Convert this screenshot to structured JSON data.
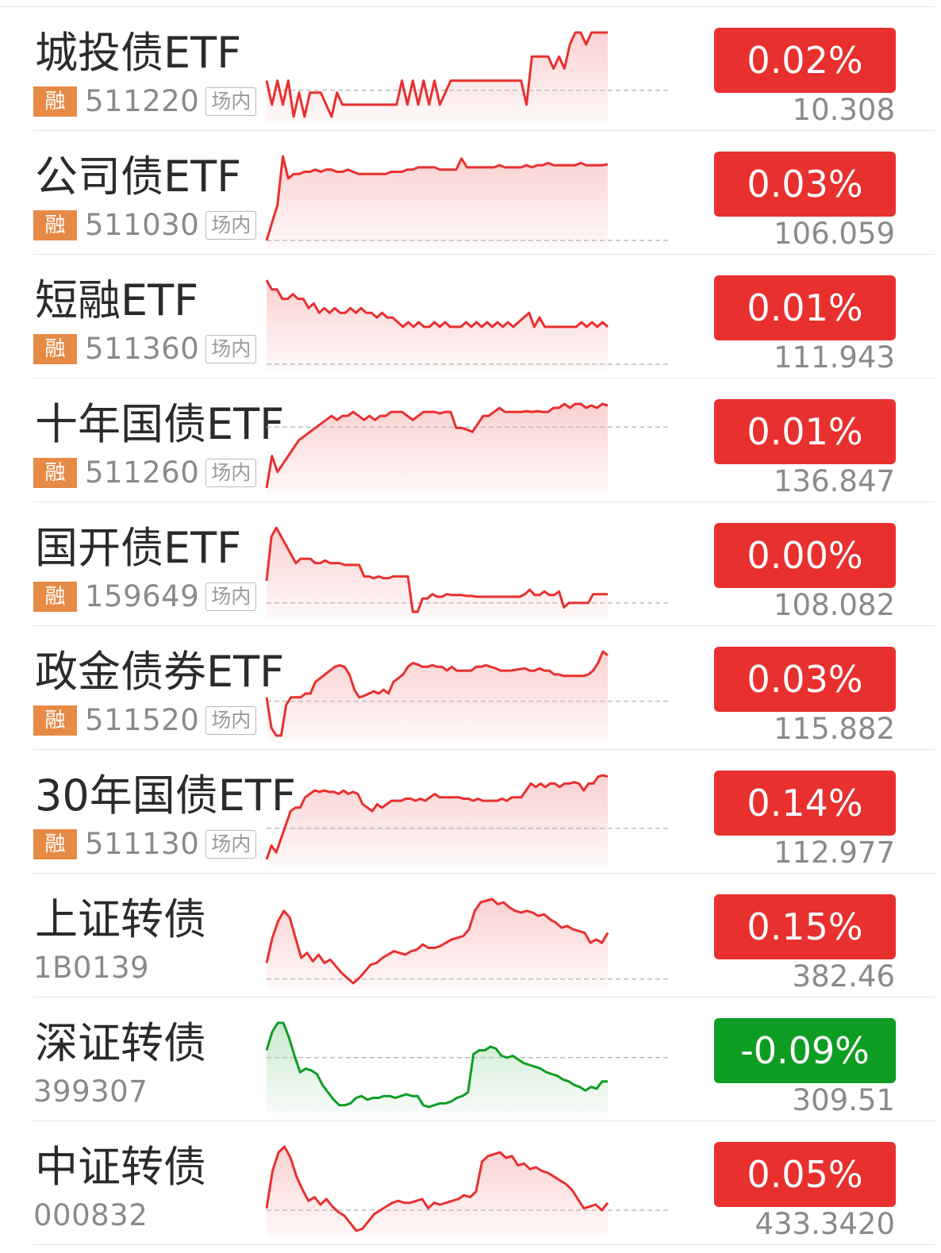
{
  "colors": {
    "up": "#e8302f",
    "down": "#0e9d23",
    "rong_bg": "#e68a45"
  },
  "rows": [
    {
      "name": "城投债ETF",
      "rong": "融",
      "code": "511220",
      "venue": "场内",
      "change": "0.02%",
      "price": "10.308",
      "trend": "up",
      "spark": [
        3,
        1,
        3,
        1,
        3,
        0,
        2,
        0,
        2,
        2,
        2,
        1,
        0,
        2,
        1,
        1,
        1,
        1,
        1,
        1,
        1,
        1,
        1,
        1,
        1,
        3,
        1,
        3,
        1,
        3,
        1,
        3,
        1,
        2,
        3,
        3,
        3,
        3,
        3,
        3,
        3,
        3,
        3,
        3,
        3,
        3,
        3,
        3,
        1,
        5,
        5,
        5,
        5,
        4,
        5,
        4,
        6,
        7,
        7,
        6,
        7,
        7,
        7,
        7
      ],
      "base": 2.2
    },
    {
      "name": "公司债ETF",
      "rong": "融",
      "code": "511030",
      "venue": "场内",
      "change": "0.03%",
      "price": "106.059",
      "trend": "up",
      "spark": [
        0,
        4,
        8,
        19,
        14,
        15,
        15,
        15.5,
        15.5,
        16,
        15.5,
        16,
        16,
        15.5,
        15.5,
        16,
        15.5,
        15,
        15,
        15,
        15,
        15,
        15,
        15.5,
        15.5,
        15.5,
        16,
        16,
        16.5,
        16.5,
        16.5,
        16.5,
        16,
        16,
        16,
        16,
        18.5,
        16.5,
        16.5,
        16.5,
        16.5,
        16.5,
        16.5,
        17,
        16.5,
        16.5,
        16.5,
        16.5,
        17,
        16.5,
        17,
        17,
        17.5,
        17,
        17,
        17,
        17,
        17,
        17.5,
        17,
        17,
        17,
        17,
        17.2
      ],
      "base": 0
    },
    {
      "name": "短融ETF",
      "rong": "融",
      "code": "511360",
      "venue": "场内",
      "change": "0.01%",
      "price": "111.943",
      "trend": "up",
      "spark": [
        9,
        8,
        8,
        7,
        7,
        7.5,
        7,
        7,
        6,
        6.5,
        5.5,
        6,
        5.5,
        6,
        5.5,
        5.5,
        6,
        5.5,
        6,
        5.5,
        5.5,
        5,
        5.5,
        5,
        5,
        4.5,
        4,
        4.5,
        4,
        4.5,
        4,
        4,
        4.5,
        4,
        4.5,
        4,
        4,
        4,
        4.5,
        4,
        4.5,
        4,
        4.5,
        4,
        4.5,
        4,
        4.5,
        4,
        4.5,
        5,
        5.5,
        4,
        5,
        4,
        4,
        4,
        4,
        4,
        4,
        4,
        4.5,
        4,
        4.5,
        4,
        4.5,
        4
      ],
      "base": 0
    },
    {
      "name": "十年国债ETF",
      "rong": "融",
      "code": "511260",
      "venue": "场内",
      "change": "0.01%",
      "price": "136.847",
      "trend": "up",
      "spark": [
        0,
        4,
        2,
        3,
        4,
        5,
        6,
        6.5,
        7,
        7.5,
        8,
        8.5,
        9,
        8.5,
        9,
        9,
        9.5,
        9,
        8.5,
        9,
        8.5,
        9,
        9,
        9.5,
        9.5,
        9.5,
        9,
        8.5,
        9,
        9.5,
        9.5,
        9.5,
        9.3,
        9.5,
        9.5,
        7.5,
        7.5,
        7.3,
        7,
        8,
        9,
        9,
        9.5,
        10,
        9.5,
        9.5,
        9.5,
        9.5,
        9.6,
        9.5,
        9.6,
        9.5,
        9.5,
        10,
        10,
        10.5,
        10,
        10.5,
        10.5,
        10,
        10.3,
        10,
        10.5,
        10.3
      ],
      "base": 7.6
    },
    {
      "name": "国开债ETF",
      "rong": "融",
      "code": "159649",
      "venue": "场内",
      "change": "0.00%",
      "price": "108.082",
      "trend": "up",
      "spark": [
        4,
        9,
        10,
        9,
        8,
        7,
        6,
        6.5,
        6.5,
        6.5,
        6,
        6,
        6.3,
        6,
        6,
        6,
        5.8,
        5.8,
        5.8,
        5.8,
        4.5,
        4.5,
        4.3,
        4.5,
        4.3,
        4.3,
        4.5,
        4.5,
        4.5,
        4.5,
        0.5,
        0.5,
        2,
        2,
        2.5,
        2.2,
        2.2,
        2.5,
        2.4,
        2.4,
        2.4,
        2.3,
        2.3,
        2.2,
        2.2,
        2.2,
        2.2,
        2.2,
        2.2,
        2.2,
        2.2,
        2.2,
        2.2,
        2.5,
        3,
        2.4,
        2.4,
        2.8,
        2.4,
        2.4,
        2.8,
        1,
        1.5,
        1.5,
        1.5,
        1.5,
        1.5,
        2.5,
        2.5,
        2.5,
        2.5
      ],
      "base": 1.5
    },
    {
      "name": "政金债券ETF",
      "rong": "融",
      "code": "511520",
      "venue": "场内",
      "change": "0.03%",
      "price": "115.882",
      "trend": "up",
      "spark": [
        5,
        1,
        0,
        0,
        4,
        5,
        5,
        5,
        5.5,
        5.5,
        7,
        7.5,
        8,
        8.5,
        9,
        9.2,
        9,
        8,
        6,
        5,
        5.2,
        5.5,
        5.8,
        5.5,
        6,
        5.5,
        7,
        7.5,
        8,
        9,
        9.5,
        9.3,
        9,
        9,
        9.2,
        9,
        9,
        8.5,
        9,
        8.5,
        8.5,
        8.5,
        8.5,
        9,
        9,
        9.2,
        9,
        8.8,
        8.5,
        8.5,
        8.5,
        8.6,
        8.7,
        8.8,
        8.5,
        8.5,
        8.8,
        8.5,
        8.5,
        8,
        8,
        7.8,
        7.8,
        7.8,
        7.8,
        7.8,
        8,
        8.5,
        9.5,
        11,
        10.5
      ],
      "base": 4.5
    },
    {
      "name": "30年国债ETF",
      "rong": "融",
      "code": "511130",
      "venue": "场内",
      "change": "0.14%",
      "price": "112.977",
      "trend": "up",
      "spark": [
        0,
        2,
        1,
        3,
        5,
        7,
        7.5,
        7.5,
        9,
        9.5,
        10,
        9.8,
        10,
        9.8,
        9.8,
        9.5,
        10,
        9.5,
        9.8,
        9.5,
        8,
        7.5,
        7,
        8,
        7.5,
        8,
        8.5,
        8.5,
        8.5,
        8.8,
        8.8,
        8.5,
        8.8,
        8.5,
        9,
        9.5,
        9,
        9,
        9,
        9,
        9,
        8.8,
        8.8,
        8.5,
        8.8,
        8.5,
        8.5,
        8.5,
        8.5,
        8.8,
        8.5,
        9,
        9,
        9,
        10,
        11,
        10.5,
        11,
        10.5,
        11,
        11,
        10.5,
        11,
        11,
        11.2,
        11,
        10,
        11,
        11,
        12,
        12.2,
        12
      ],
      "base": 4.5
    },
    {
      "name": "上证转债",
      "rong": "",
      "code": "1B0139",
      "venue": "",
      "change": "0.15%",
      "price": "382.46",
      "trend": "up",
      "spark": [
        1.5,
        3,
        4,
        4.6,
        4.2,
        3,
        1.8,
        2.1,
        1.6,
        2,
        1.5,
        1.7,
        1.3,
        0.9,
        0.6,
        0.3,
        0.6,
        1,
        1.4,
        1.5,
        1.8,
        2,
        2.2,
        2.1,
        2,
        2.2,
        2.3,
        2.6,
        2.4,
        2.4,
        2.5,
        2.7,
        2.9,
        3,
        3.1,
        3.5,
        4.6,
        5.1,
        5.2,
        5.3,
        5,
        5.1,
        4.8,
        4.6,
        4.5,
        4.6,
        4.5,
        4.3,
        4.4,
        4.1,
        3.9,
        3.6,
        3.7,
        3.5,
        3.4,
        3.3,
        2.7,
        2.9,
        2.7,
        3.3
      ],
      "base": 0.55
    },
    {
      "name": "深证转债",
      "rong": "",
      "code": "399307",
      "venue": "",
      "change": "-0.09%",
      "price": "309.51",
      "trend": "down",
      "spark": [
        3.5,
        4.5,
        5,
        5,
        4.2,
        3.2,
        2.3,
        2.5,
        2.4,
        2.2,
        1.6,
        1.2,
        0.8,
        0.5,
        0.5,
        0.6,
        0.9,
        1,
        0.8,
        0.9,
        0.9,
        1,
        1,
        0.9,
        1,
        1.1,
        1,
        1,
        0.5,
        0.4,
        0.5,
        0.6,
        0.6,
        0.7,
        0.9,
        1,
        1.2,
        3.3,
        3.5,
        3.5,
        3.7,
        3.6,
        3.2,
        3.1,
        3.2,
        3,
        2.8,
        2.7,
        2.6,
        2.5,
        2.3,
        2.2,
        2.1,
        1.9,
        1.8,
        1.6,
        1.5,
        1.3,
        1.5,
        1.4,
        1.8,
        1.8
      ],
      "base": 3.1
    },
    {
      "name": "中证转债",
      "rong": "",
      "code": "000832",
      "venue": "",
      "change": "0.05%",
      "price": "433.3420",
      "trend": "up",
      "spark": [
        1.5,
        3.5,
        4.5,
        4.8,
        4.2,
        3.2,
        2.5,
        1.9,
        2.1,
        1.7,
        2,
        1.6,
        1.3,
        1.1,
        0.7,
        0.3,
        0.4,
        0.8,
        1.2,
        1.4,
        1.6,
        1.8,
        1.9,
        1.8,
        1.8,
        1.9,
        2,
        1.5,
        1.8,
        1.7,
        1.8,
        1.9,
        2,
        2.2,
        2.1,
        2.4,
        4,
        4.3,
        4.4,
        4.5,
        4.2,
        4.3,
        3.8,
        3.9,
        3.6,
        3.7,
        3.5,
        3.4,
        3.2,
        3,
        2.8,
        2.5,
        2,
        1.5,
        1.6,
        1.7,
        1.4,
        1.8
      ],
      "base": 1.4
    }
  ]
}
